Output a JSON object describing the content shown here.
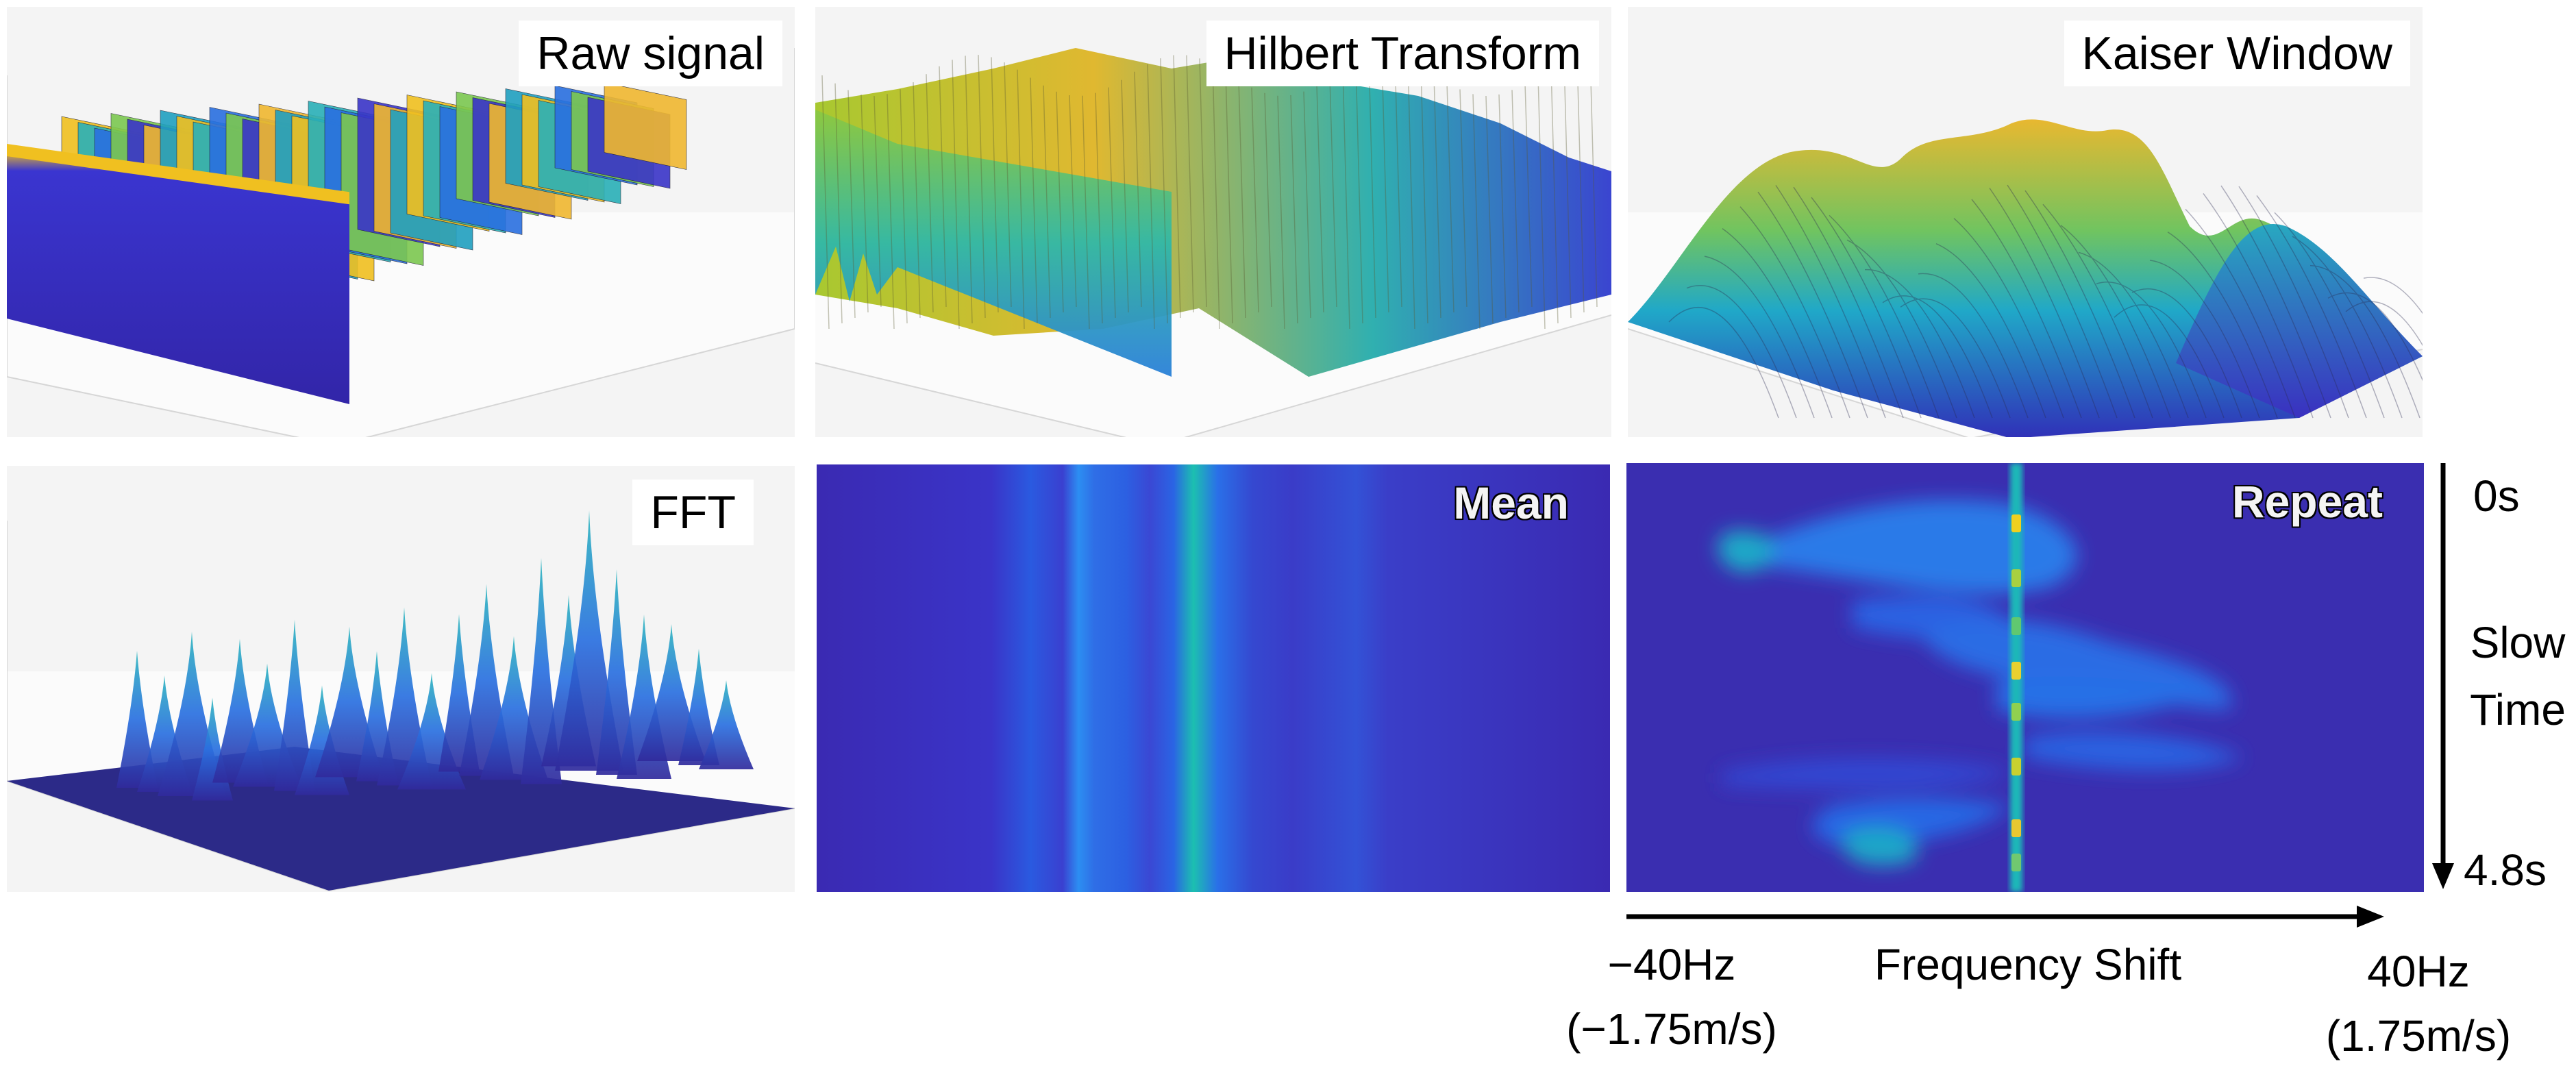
{
  "panels": {
    "raw": {
      "title": "Raw signal"
    },
    "hilbert": {
      "title": "Hilbert Transform"
    },
    "kaiser": {
      "title": "Kaiser Window"
    },
    "fft": {
      "title": "FFT"
    },
    "mean": {
      "title": "Mean"
    },
    "repeat": {
      "title": "Repeat"
    }
  },
  "axes": {
    "time_start": "0s",
    "time_label_line1": "Slow",
    "time_label_line2": "Time",
    "time_end": "4.8s",
    "freq_min": "−40Hz",
    "freq_min_speed": "(−1.75m/s)",
    "freq_label": "Frequency Shift",
    "freq_max": "40Hz",
    "freq_max_speed": "(1.75m/s)"
  },
  "colors": {
    "parula_dark": "#3a2ab0",
    "parula_blue": "#2a70e8",
    "parula_teal": "#18b8b0",
    "parula_green": "#80cc40",
    "parula_yellow": "#f0d020",
    "arrow": "#000000"
  },
  "icons": {
    "time_arrow": "arrow-down",
    "freq_arrow": "arrow-right"
  }
}
